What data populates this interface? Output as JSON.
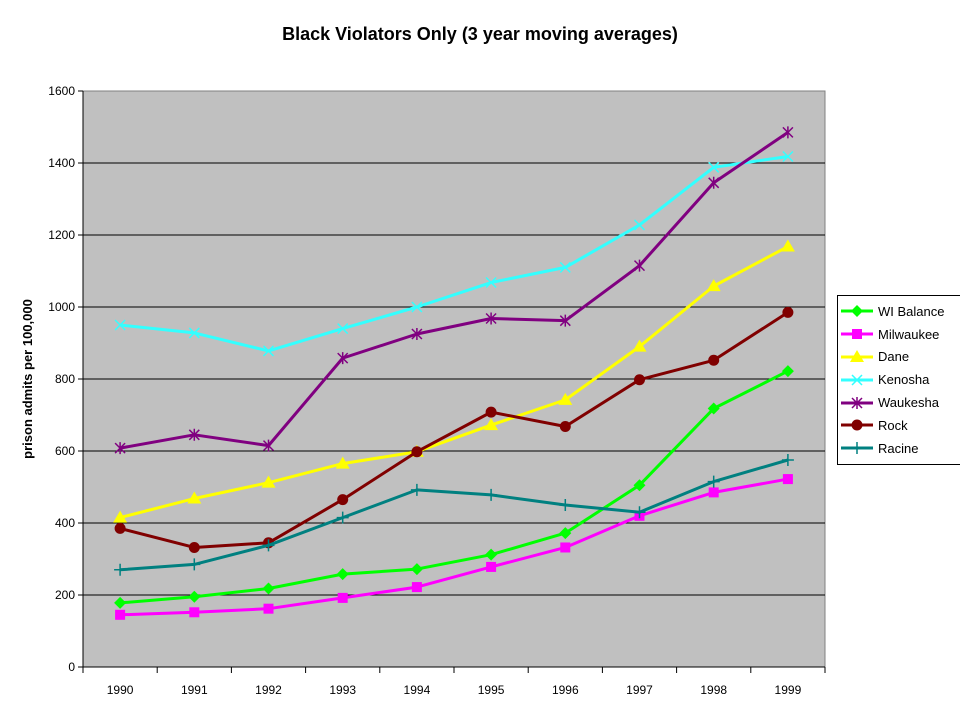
{
  "chart_data": {
    "type": "line",
    "title": "Black  Violators Only (3 year moving averages)",
    "ylabel": "prison admits per 100,000",
    "xlabel": "",
    "categories": [
      "1990",
      "1991",
      "1992",
      "1993",
      "1994",
      "1995",
      "1996",
      "1997",
      "1998",
      "1999"
    ],
    "ylim": [
      0,
      1600
    ],
    "yticks": [
      0,
      200,
      400,
      600,
      800,
      1000,
      1200,
      1400,
      1600
    ],
    "grid": true,
    "legend_position": "right",
    "plot_background": "#c0c0c0",
    "series": [
      {
        "name": "WI Balance",
        "color": "#00ff00",
        "marker": "diamond",
        "values": [
          178,
          195,
          218,
          258,
          272,
          312,
          372,
          505,
          718,
          822
        ]
      },
      {
        "name": "Milwaukee",
        "color": "#ff00ff",
        "marker": "square",
        "values": [
          145,
          152,
          162,
          192,
          222,
          278,
          332,
          420,
          485,
          522
        ]
      },
      {
        "name": "Dane",
        "color": "#ffff00",
        "marker": "triangle",
        "values": [
          415,
          468,
          512,
          565,
          598,
          672,
          742,
          890,
          1058,
          1168
        ]
      },
      {
        "name": "Kenosha",
        "color": "#33ffff",
        "marker": "x",
        "values": [
          950,
          928,
          878,
          940,
          1000,
          1068,
          1110,
          1228,
          1388,
          1418
        ]
      },
      {
        "name": "Waukesha",
        "color": "#800080",
        "marker": "star",
        "values": [
          608,
          645,
          615,
          858,
          925,
          968,
          962,
          1115,
          1345,
          1485
        ]
      },
      {
        "name": "Rock",
        "color": "#800000",
        "marker": "circle",
        "values": [
          385,
          332,
          345,
          465,
          598,
          708,
          668,
          798,
          852,
          985
        ]
      },
      {
        "name": "Racine",
        "color": "#008080",
        "marker": "plus",
        "values": [
          270,
          285,
          338,
          415,
          492,
          478,
          450,
          430,
          515,
          575
        ]
      }
    ]
  }
}
